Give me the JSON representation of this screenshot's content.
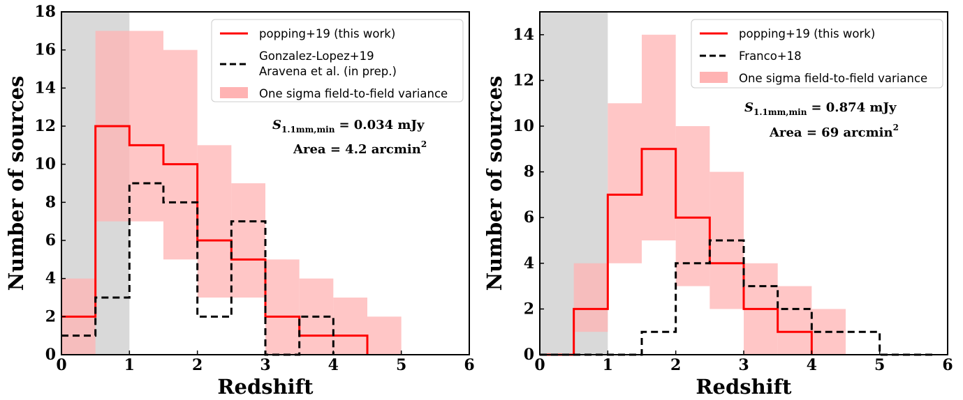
{
  "chart_data": [
    {
      "type": "step",
      "xlabel": "Redshift",
      "ylabel": "Number of sources",
      "xlim": [
        0,
        6
      ],
      "ylim": [
        0,
        18
      ],
      "xticks": [
        "0",
        "1",
        "2",
        "3",
        "4",
        "5",
        "6"
      ],
      "yticks": [
        "0",
        "2",
        "4",
        "6",
        "8",
        "10",
        "12",
        "14",
        "16",
        "18"
      ],
      "shaded_region": {
        "x": [
          0,
          1
        ],
        "color": "#d9d9d9"
      },
      "legend": {
        "position": "top-right",
        "entries": [
          {
            "label": "popping+19 (this work)",
            "style": "solid",
            "color": "#ff0000"
          },
          {
            "label": "Gonzalez-Lopez+19",
            "label2": "Aravena et al. (in prep.)",
            "style": "dashed",
            "color": "#000000"
          },
          {
            "label": "One sigma field-to-field variance",
            "style": "patch",
            "color": "#ffb3b3"
          }
        ]
      },
      "annotations": {
        "line1_sym": "S",
        "line1_sub": "1.1mm,min",
        "line1_val": "=  0.034 mJy",
        "line2_pre": "Area  =  4.2 arcmin",
        "line2_sup": "2"
      },
      "bin_edges": [
        0,
        0.5,
        1,
        1.5,
        2,
        2.5,
        3,
        3.5,
        4,
        4.5,
        5,
        5.5,
        6
      ],
      "series": [
        {
          "name": "popping+19 (this work)",
          "style": "solid",
          "color": "#ff0000",
          "values": [
            2,
            12,
            11,
            10,
            6,
            5,
            2,
            1,
            1,
            0,
            0,
            0
          ],
          "end_x": 4.5
        },
        {
          "name": "Gonzalez-Lopez+19 Aravena et al. (in prep.)",
          "style": "dashed",
          "color": "#000000",
          "values": [
            1,
            3,
            9,
            8,
            2,
            7,
            0,
            2,
            0,
            0,
            0,
            0
          ],
          "end_x": 4
        }
      ],
      "variance_band": {
        "lower": [
          0,
          7,
          7,
          5,
          3,
          3,
          0,
          0,
          0,
          0,
          0,
          0
        ],
        "upper": [
          4,
          17,
          17,
          16,
          11,
          9,
          5,
          4,
          3,
          2,
          0,
          0
        ]
      }
    },
    {
      "type": "step",
      "xlabel": "Redshift",
      "ylabel": "Number of sources",
      "xlim": [
        0,
        6
      ],
      "ylim": [
        0,
        15
      ],
      "xticks": [
        "0",
        "1",
        "2",
        "3",
        "4",
        "5",
        "6"
      ],
      "yticks": [
        "0",
        "2",
        "4",
        "6",
        "8",
        "10",
        "12",
        "14"
      ],
      "shaded_region": {
        "x": [
          0,
          1
        ],
        "color": "#d9d9d9"
      },
      "legend": {
        "position": "top-right",
        "entries": [
          {
            "label": "popping+19 (this work)",
            "style": "solid",
            "color": "#ff0000"
          },
          {
            "label": "Franco+18",
            "style": "dashed",
            "color": "#000000"
          },
          {
            "label": "One sigma field-to-field variance",
            "style": "patch",
            "color": "#ffb3b3"
          }
        ]
      },
      "annotations": {
        "line1_sym": "S",
        "line1_sub": "1.1mm,min",
        "line1_val": "=  0.874 mJy",
        "line2_pre": "Area  =  69 arcmin",
        "line2_sup": "2"
      },
      "bin_edges": [
        0,
        0.5,
        1,
        1.5,
        2,
        2.5,
        3,
        3.5,
        4,
        4.5,
        5,
        5.5,
        6
      ],
      "series": [
        {
          "name": "popping+19 (this work)",
          "style": "solid",
          "color": "#ff0000",
          "values": [
            0,
            2,
            7,
            9,
            6,
            4,
            2,
            1,
            0,
            0,
            0,
            0
          ],
          "end_x": 4
        },
        {
          "name": "Franco+18",
          "style": "dashed",
          "color": "#000000",
          "values": [
            0,
            0,
            0,
            1,
            4,
            5,
            3,
            2,
            1,
            1,
            0,
            0
          ],
          "end_x": 5.8
        }
      ],
      "variance_band": {
        "lower": [
          0,
          1,
          4,
          5,
          3,
          2,
          0,
          0,
          0,
          0,
          0,
          0
        ],
        "upper": [
          0,
          4,
          11,
          14,
          10,
          8,
          4,
          3,
          2,
          0,
          0,
          0
        ]
      }
    }
  ]
}
